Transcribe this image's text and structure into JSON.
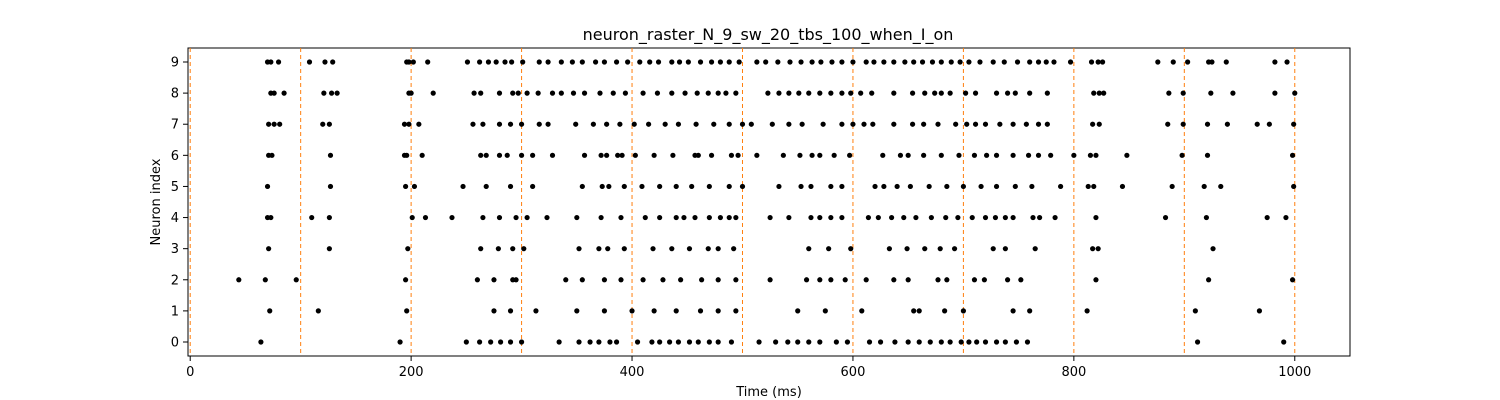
{
  "chart_data": {
    "type": "scatter",
    "title": "neuron_raster_N_9_sw_20_tbs_100_when_I_on",
    "xlabel": "Time (ms)",
    "ylabel": "Neuron index",
    "xlim": [
      -2,
      1050
    ],
    "ylim": [
      -0.45,
      9.45
    ],
    "xticks": [
      0,
      200,
      400,
      600,
      800,
      1000
    ],
    "yticks": [
      0,
      1,
      2,
      3,
      4,
      5,
      6,
      7,
      8,
      9
    ],
    "marker_color": "#000000",
    "vline_color": "#ff7f0e",
    "vlines": [
      0,
      100,
      200,
      300,
      400,
      500,
      600,
      700,
      800,
      900,
      1000
    ],
    "grid": false,
    "series": [
      {
        "neuron": 0,
        "times": [
          64,
          190,
          250,
          262,
          272,
          281,
          290,
          300,
          334,
          352,
          362,
          370,
          380,
          386,
          405,
          418,
          425,
          434,
          442,
          452,
          460,
          470,
          478,
          490,
          515,
          530,
          541,
          550,
          560,
          570,
          585,
          595,
          615,
          625,
          638,
          650,
          660,
          670,
          680,
          688,
          698,
          705,
          712,
          720,
          730,
          738,
          748,
          758,
          912,
          990
        ]
      },
      {
        "neuron": 1,
        "times": [
          72,
          116,
          196,
          275,
          290,
          313,
          350,
          375,
          400,
          420,
          440,
          462,
          478,
          494,
          550,
          575,
          608,
          655,
          660,
          683,
          700,
          745,
          760,
          812,
          910,
          968
        ]
      },
      {
        "neuron": 2,
        "times": [
          44,
          68,
          96,
          195,
          260,
          275,
          292,
          295,
          340,
          355,
          375,
          390,
          410,
          428,
          444,
          463,
          478,
          494,
          525,
          558,
          570,
          580,
          593,
          612,
          637,
          650,
          677,
          685,
          710,
          719,
          740,
          752,
          820,
          922,
          998
        ]
      },
      {
        "neuron": 3,
        "times": [
          71,
          126,
          197,
          263,
          279,
          292,
          302,
          352,
          370,
          378,
          393,
          419,
          436,
          452,
          469,
          478,
          492,
          560,
          578,
          598,
          633,
          649,
          665,
          679,
          692,
          727,
          738,
          765,
          817,
          822,
          926
        ]
      },
      {
        "neuron": 4,
        "times": [
          70,
          73,
          110,
          126,
          201,
          213,
          237,
          265,
          280,
          295,
          305,
          323,
          350,
          372,
          390,
          412,
          425,
          440,
          447,
          457,
          470,
          480,
          488,
          494,
          525,
          542,
          562,
          570,
          580,
          590,
          614,
          623,
          635,
          646,
          657,
          671,
          684,
          695,
          708,
          720,
          729,
          738,
          745,
          763,
          769,
          783,
          820,
          883,
          920,
          975,
          992
        ]
      },
      {
        "neuron": 5,
        "times": [
          70,
          127,
          195,
          203,
          247,
          268,
          290,
          310,
          355,
          373,
          379,
          393,
          409,
          425,
          440,
          454,
          470,
          488,
          500,
          533,
          553,
          562,
          580,
          590,
          620,
          628,
          640,
          652,
          669,
          685,
          700,
          716,
          730,
          747,
          762,
          788,
          813,
          818,
          844,
          889,
          918,
          933,
          999
        ]
      },
      {
        "neuron": 6,
        "times": [
          71,
          74,
          127,
          194,
          196,
          210,
          263,
          268,
          280,
          287,
          300,
          310,
          328,
          357,
          372,
          377,
          387,
          391,
          403,
          420,
          437,
          457,
          460,
          472,
          490,
          496,
          513,
          537,
          552,
          563,
          570,
          583,
          597,
          627,
          643,
          650,
          664,
          680,
          696,
          710,
          721,
          730,
          745,
          759,
          768,
          779,
          800,
          815,
          820,
          848,
          898,
          921,
          998
        ]
      },
      {
        "neuron": 7,
        "times": [
          71,
          76,
          81,
          120,
          126,
          194,
          198,
          207,
          256,
          265,
          280,
          290,
          300,
          316,
          324,
          349,
          365,
          377,
          389,
          402,
          415,
          430,
          442,
          458,
          474,
          488,
          500,
          508,
          527,
          542,
          554,
          573,
          590,
          600,
          610,
          618,
          637,
          654,
          664,
          677,
          693,
          703,
          711,
          720,
          733,
          745,
          757,
          768,
          776,
          817,
          823,
          885,
          899,
          921,
          939,
          966,
          977,
          999
        ]
      },
      {
        "neuron": 8,
        "times": [
          73,
          76,
          85,
          121,
          128,
          133,
          198,
          200,
          220,
          257,
          263,
          280,
          292,
          297,
          305,
          315,
          328,
          336,
          347,
          357,
          371,
          383,
          394,
          410,
          423,
          436,
          448,
          459,
          469,
          478,
          485,
          494,
          523,
          533,
          542,
          551,
          560,
          570,
          580,
          590,
          598,
          607,
          617,
          637,
          654,
          665,
          674,
          680,
          688,
          702,
          711,
          730,
          740,
          747,
          760,
          776,
          818,
          823,
          827,
          886,
          899,
          924,
          944,
          982,
          1000
        ]
      },
      {
        "neuron": 9,
        "times": [
          70,
          73,
          80,
          108,
          122,
          129,
          196,
          198,
          202,
          215,
          251,
          262,
          270,
          277,
          285,
          291,
          301,
          316,
          324,
          336,
          346,
          355,
          367,
          375,
          386,
          396,
          407,
          416,
          424,
          436,
          443,
          451,
          462,
          472,
          480,
          488,
          497,
          513,
          521,
          532,
          543,
          553,
          563,
          571,
          581,
          590,
          600,
          612,
          619,
          628,
          637,
          647,
          655,
          663,
          672,
          680,
          689,
          697,
          705,
          715,
          727,
          737,
          749,
          760,
          768,
          775,
          782,
          797,
          816,
          822,
          826,
          876,
          890,
          903,
          922,
          925,
          938,
          982,
          993
        ]
      }
    ]
  }
}
